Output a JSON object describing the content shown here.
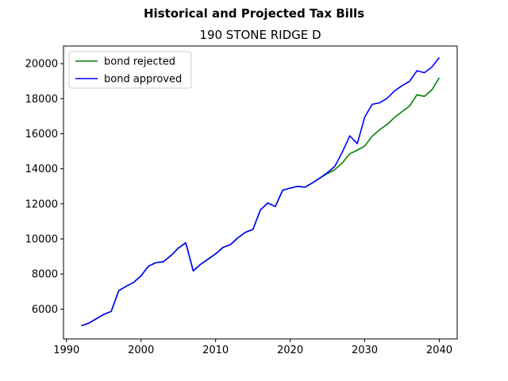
{
  "figure": {
    "suptitle": "Historical and Projected Tax Bills",
    "title": "190 STONE RIDGE D"
  },
  "chart_data": {
    "type": "line",
    "title": "190 STONE RIDGE D",
    "xlabel": "",
    "ylabel": "",
    "xlim": [
      1989.6,
      2042.4
    ],
    "ylim": [
      4300,
      21000
    ],
    "xticks": [
      1990,
      2000,
      2010,
      2020,
      2030,
      2040
    ],
    "yticks": [
      6000,
      8000,
      10000,
      12000,
      14000,
      16000,
      18000,
      20000
    ],
    "grid": false,
    "legend_position": "top-left",
    "series": [
      {
        "name": "bond rejected",
        "color": "#008000",
        "x": [
          1992,
          1993,
          1994,
          1995,
          1996,
          1997,
          1998,
          1999,
          2000,
          2001,
          2002,
          2003,
          2004,
          2005,
          2006,
          2007,
          2008,
          2009,
          2010,
          2011,
          2012,
          2013,
          2014,
          2015,
          2016,
          2017,
          2018,
          2019,
          2020,
          2021,
          2022,
          2023,
          2024,
          2025,
          2026,
          2027,
          2028,
          2029,
          2030,
          2031,
          2032,
          2033,
          2034,
          2035,
          2036,
          2037,
          2038,
          2039,
          2040
        ],
        "values": [
          5050,
          5200,
          5450,
          5700,
          5870,
          7050,
          7300,
          7520,
          7900,
          8450,
          8650,
          8700,
          9050,
          9480,
          9780,
          8180,
          8560,
          8850,
          9150,
          9520,
          9680,
          10070,
          10380,
          10540,
          11650,
          12050,
          11850,
          12780,
          12900,
          13000,
          12950,
          13200,
          13480,
          13730,
          13960,
          14340,
          14860,
          15060,
          15300,
          15860,
          16230,
          16530,
          16930,
          17260,
          17570,
          18220,
          18130,
          18500,
          19190
        ]
      },
      {
        "name": "bond approved",
        "color": "#0000ff",
        "x": [
          1992,
          1993,
          1994,
          1995,
          1996,
          1997,
          1998,
          1999,
          2000,
          2001,
          2002,
          2003,
          2004,
          2005,
          2006,
          2007,
          2008,
          2009,
          2010,
          2011,
          2012,
          2013,
          2014,
          2015,
          2016,
          2017,
          2018,
          2019,
          2020,
          2021,
          2022,
          2023,
          2024,
          2025,
          2026,
          2027,
          2028,
          2029,
          2030,
          2031,
          2032,
          2033,
          2034,
          2035,
          2036,
          2037,
          2038,
          2039,
          2040
        ],
        "values": [
          5050,
          5200,
          5450,
          5700,
          5870,
          7050,
          7300,
          7520,
          7900,
          8450,
          8650,
          8700,
          9050,
          9480,
          9780,
          8180,
          8560,
          8850,
          9150,
          9520,
          9680,
          10070,
          10380,
          10540,
          11650,
          12050,
          11850,
          12780,
          12900,
          13000,
          12950,
          13200,
          13480,
          13780,
          14150,
          14960,
          15880,
          15430,
          16950,
          17680,
          17760,
          18020,
          18440,
          18740,
          18980,
          19590,
          19480,
          19800,
          20350
        ]
      }
    ]
  }
}
